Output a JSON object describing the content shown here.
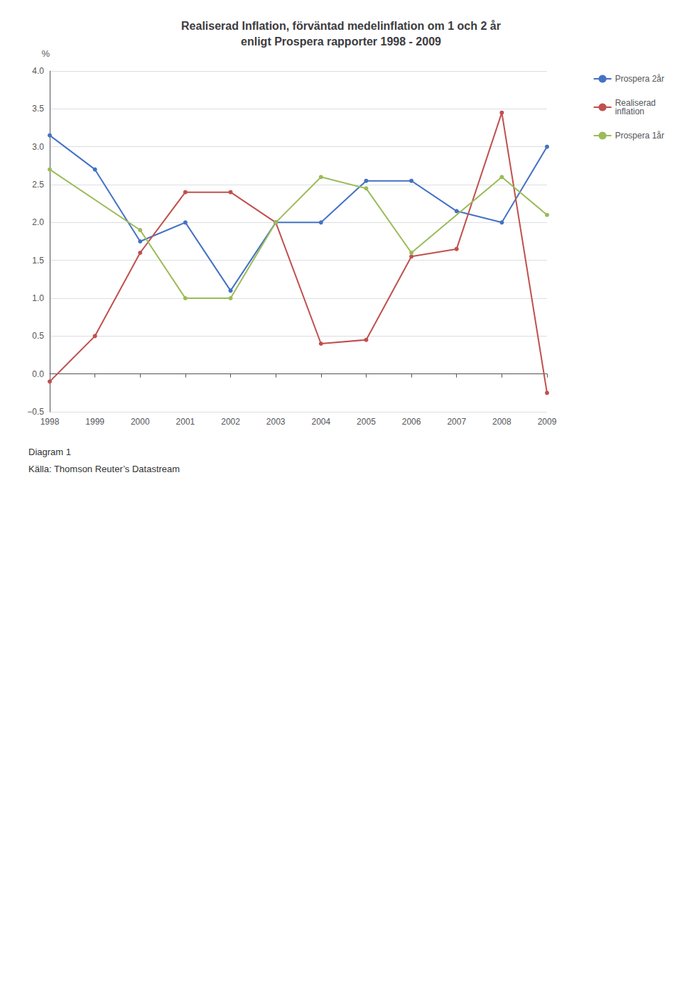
{
  "chart_data": {
    "type": "line",
    "title": "Realiserad Inflation, förväntad medelinflation om 1 och 2 år\nenligt Prospera rapporter 1998 - 2009",
    "ylabel": "%",
    "categories": [
      "1998",
      "1999",
      "2000",
      "2001",
      "2002",
      "2003",
      "2004",
      "2005",
      "2006",
      "2007",
      "2008",
      "2009"
    ],
    "series": [
      {
        "name": "Prospera 2år",
        "color": "#4472C4",
        "values": [
          3.15,
          2.7,
          1.75,
          2.0,
          1.1,
          2.0,
          2.0,
          2.55,
          2.55,
          2.15,
          2.0,
          3.0
        ]
      },
      {
        "name": "Realiserad\ninflation",
        "color": "#C0504D",
        "values": [
          -0.1,
          0.5,
          1.6,
          2.4,
          2.4,
          2.0,
          0.4,
          0.45,
          1.55,
          1.65,
          3.45,
          -0.25
        ]
      },
      {
        "name": "Prospera 1år",
        "color": "#9BBB59",
        "values": [
          2.7,
          null,
          1.9,
          1.0,
          1.0,
          2.0,
          2.6,
          2.45,
          1.6,
          null,
          2.6,
          2.1
        ]
      }
    ],
    "ylim": [
      -0.5,
      4.0
    ],
    "yticks": [
      {
        "value": -0.5,
        "label": "−0.5"
      },
      {
        "value": 0,
        "label": "0.0"
      },
      0.5,
      {
        "value": 1,
        "label": "1.0"
      },
      1.5,
      {
        "value": 2,
        "label": "2.0"
      },
      2.5,
      {
        "value": 3,
        "label": "3.0"
      },
      3.5,
      {
        "value": 4,
        "label": "4.0"
      }
    ],
    "grid": true,
    "legend": "right",
    "marker": "circle",
    "annotations": [
      "Diagram 1",
      "Källa: Thomson Reuter’s Datastream"
    ]
  }
}
